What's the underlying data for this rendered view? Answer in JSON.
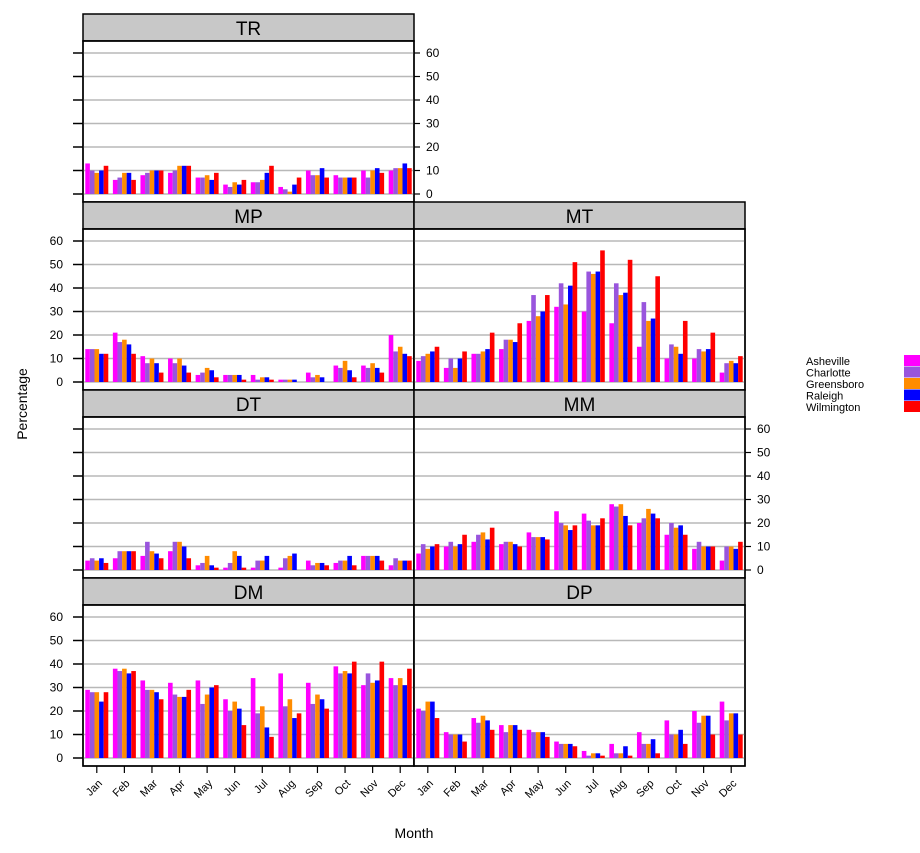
{
  "chart_data": {
    "type": "bar",
    "xlabel": "Month",
    "ylabel": "Percentage",
    "ylim": [
      0,
      60
    ],
    "yticks": [
      0,
      10,
      20,
      30,
      40,
      50,
      60
    ],
    "grid": true,
    "legend_position": "right",
    "categories": [
      "Jan",
      "Feb",
      "Mar",
      "Apr",
      "May",
      "Jun",
      "Jul",
      "Aug",
      "Sep",
      "Oct",
      "Nov",
      "Dec"
    ],
    "series_names": [
      "Asheville",
      "Charlotte",
      "Greensboro",
      "Raleigh",
      "Wilmington"
    ],
    "colors": [
      "#FF00FF",
      "#9955DD",
      "#FF8C00",
      "#0000FF",
      "#FF0000"
    ],
    "panels": [
      {
        "name": "TR",
        "series": [
          {
            "name": "Asheville",
            "values": [
              13,
              6,
              8,
              9,
              7,
              4,
              5,
              3,
              10,
              8,
              10,
              10
            ]
          },
          {
            "name": "Charlotte",
            "values": [
              10,
              7,
              9,
              10,
              7,
              3,
              5,
              2,
              8,
              7,
              7,
              11
            ]
          },
          {
            "name": "Greensboro",
            "values": [
              9,
              9,
              10,
              12,
              8,
              5,
              6,
              1,
              8,
              7,
              10,
              11
            ]
          },
          {
            "name": "Raleigh",
            "values": [
              10,
              9,
              10,
              12,
              6,
              4,
              9,
              4,
              11,
              7,
              11,
              13
            ]
          },
          {
            "name": "Wilmington",
            "values": [
              12,
              6,
              10,
              12,
              9,
              6,
              12,
              7,
              7,
              7,
              9,
              11
            ]
          }
        ]
      },
      {
        "name": "MP",
        "series": [
          {
            "name": "Asheville",
            "values": [
              14,
              21,
              11,
              10,
              3,
              3,
              3,
              1,
              4,
              7,
              7,
              20
            ]
          },
          {
            "name": "Charlotte",
            "values": [
              14,
              17,
              8,
              8,
              4,
              3,
              1,
              1,
              2,
              6,
              6,
              13
            ]
          },
          {
            "name": "Greensboro",
            "values": [
              14,
              18,
              10,
              10,
              6,
              3,
              2,
              1,
              3,
              9,
              8,
              15
            ]
          },
          {
            "name": "Raleigh",
            "values": [
              12,
              16,
              8,
              7,
              5,
              3,
              2,
              1,
              2,
              5,
              6,
              12
            ]
          },
          {
            "name": "Wilmington",
            "values": [
              12,
              12,
              4,
              4,
              2,
              1,
              1,
              0,
              0,
              2,
              4,
              11
            ]
          }
        ]
      },
      {
        "name": "MT",
        "series": [
          {
            "name": "Asheville",
            "values": [
              9,
              6,
              12,
              14,
              26,
              32,
              30,
              25,
              15,
              10,
              10,
              4
            ]
          },
          {
            "name": "Charlotte",
            "values": [
              11,
              10,
              12,
              18,
              37,
              42,
              47,
              42,
              34,
              16,
              14,
              8
            ]
          },
          {
            "name": "Greensboro",
            "values": [
              12,
              6,
              13,
              18,
              28,
              33,
              46,
              37,
              26,
              15,
              13,
              9
            ]
          },
          {
            "name": "Raleigh",
            "values": [
              13,
              10,
              14,
              17,
              30,
              41,
              47,
              38,
              27,
              12,
              14,
              8
            ]
          },
          {
            "name": "Wilmington",
            "values": [
              15,
              13,
              21,
              25,
              37,
              51,
              56,
              52,
              45,
              26,
              21,
              11
            ]
          }
        ]
      },
      {
        "name": "DT",
        "series": [
          {
            "name": "Asheville",
            "values": [
              4,
              5,
              6,
              8,
              2,
              1,
              1,
              1,
              4,
              3,
              6,
              2
            ]
          },
          {
            "name": "Charlotte",
            "values": [
              5,
              8,
              12,
              12,
              3,
              3,
              4,
              5,
              2,
              4,
              6,
              5
            ]
          },
          {
            "name": "Greensboro",
            "values": [
              4,
              8,
              8,
              12,
              6,
              8,
              4,
              6,
              3,
              4,
              6,
              4
            ]
          },
          {
            "name": "Raleigh",
            "values": [
              5,
              8,
              7,
              10,
              2,
              6,
              6,
              7,
              3,
              6,
              6,
              4
            ]
          },
          {
            "name": "Wilmington",
            "values": [
              3,
              8,
              5,
              5,
              1,
              1,
              0,
              0,
              2,
              2,
              4,
              4
            ]
          }
        ]
      },
      {
        "name": "MM",
        "series": [
          {
            "name": "Asheville",
            "values": [
              7,
              10,
              12,
              11,
              16,
              25,
              24,
              28,
              20,
              15,
              9,
              4
            ]
          },
          {
            "name": "Charlotte",
            "values": [
              11,
              12,
              15,
              12,
              14,
              20,
              21,
              27,
              22,
              20,
              12,
              10
            ]
          },
          {
            "name": "Greensboro",
            "values": [
              9,
              10,
              16,
              12,
              14,
              19,
              19,
              28,
              26,
              18,
              10,
              10
            ]
          },
          {
            "name": "Raleigh",
            "values": [
              10,
              11,
              13,
              11,
              14,
              17,
              19,
              23,
              24,
              19,
              10,
              9
            ]
          },
          {
            "name": "Wilmington",
            "values": [
              11,
              15,
              18,
              10,
              13,
              19,
              22,
              19,
              22,
              15,
              10,
              12
            ]
          }
        ]
      },
      {
        "name": "DM",
        "series": [
          {
            "name": "Asheville",
            "values": [
              29,
              38,
              33,
              32,
              33,
              25,
              34,
              36,
              32,
              39,
              31,
              34
            ]
          },
          {
            "name": "Charlotte",
            "values": [
              28,
              37,
              29,
              27,
              23,
              20,
              19,
              22,
              23,
              36,
              36,
              31
            ]
          },
          {
            "name": "Greensboro",
            "values": [
              28,
              38,
              29,
              26,
              27,
              24,
              22,
              25,
              27,
              37,
              32,
              34
            ]
          },
          {
            "name": "Raleigh",
            "values": [
              24,
              36,
              28,
              26,
              30,
              21,
              13,
              17,
              25,
              36,
              33,
              31
            ]
          },
          {
            "name": "Wilmington",
            "values": [
              28,
              37,
              25,
              29,
              31,
              14,
              9,
              19,
              21,
              41,
              41,
              38
            ]
          }
        ]
      },
      {
        "name": "DP",
        "series": [
          {
            "name": "Asheville",
            "values": [
              21,
              11,
              17,
              14,
              12,
              7,
              3,
              6,
              11,
              16,
              20,
              24
            ]
          },
          {
            "name": "Charlotte",
            "values": [
              20,
              10,
              15,
              11,
              11,
              6,
              1,
              2,
              6,
              10,
              15,
              16
            ]
          },
          {
            "name": "Greensboro",
            "values": [
              24,
              10,
              18,
              14,
              11,
              6,
              2,
              2,
              6,
              10,
              18,
              19
            ]
          },
          {
            "name": "Raleigh",
            "values": [
              24,
              10,
              16,
              14,
              11,
              6,
              2,
              5,
              8,
              12,
              18,
              19
            ]
          },
          {
            "name": "Wilmington",
            "values": [
              17,
              7,
              12,
              12,
              9,
              5,
              1,
              1,
              2,
              6,
              10,
              10
            ]
          }
        ]
      }
    ]
  }
}
